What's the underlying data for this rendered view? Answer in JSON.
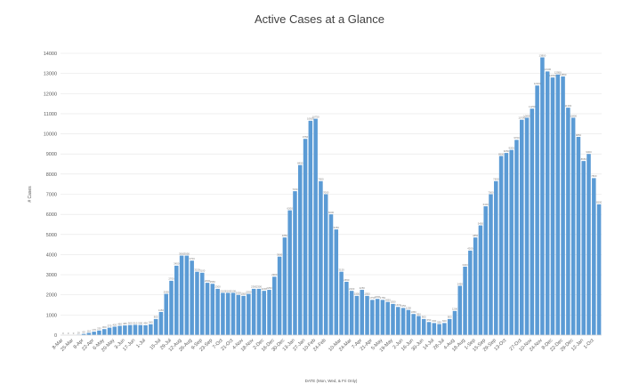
{
  "chart_data": {
    "type": "bar",
    "title": "Active Cases at a Glance",
    "xlabel": "DATE (Mon, Wed, & Fri Only)",
    "ylabel": "# Cases",
    "ylim": [
      0,
      14000
    ],
    "yticks": [
      0,
      1000,
      2000,
      3000,
      4000,
      5000,
      6000,
      7000,
      8000,
      9000,
      10000,
      11000,
      12000,
      13000,
      14000
    ],
    "grid": true,
    "bar_color": "#5b9bd5",
    "tick_labels": [
      "8-Mar",
      "25-Mar",
      "8-Apr",
      "22-Apr",
      "6-May",
      "20-May",
      "3-Jun",
      "17-Jun",
      "1-Jul",
      "15-Jul",
      "29-Jul",
      "12-Aug",
      "26-Aug",
      "9-Sep",
      "23-Sep",
      "7-Oct",
      "21-Oct",
      "4-Nov",
      "18-Nov",
      "2-Dec",
      "16-Dec",
      "30-Dec",
      "13-Jan",
      "27-Jan",
      "10-Feb",
      "24-Feb",
      "10-Mar",
      "24-Mar",
      "7-Apr",
      "21-Apr",
      "5-May",
      "19-May",
      "2-Jun",
      "16-Jun",
      "30-Jun",
      "14-Jul",
      "28-Jul",
      "4-Aug",
      "18-Aug",
      "1-Sep",
      "15-Sep",
      "29-Sep",
      "13-Oct",
      "27-Oct",
      "10-Nov",
      "24-Nov",
      "8-Dec",
      "22-Dec",
      "29-Dec",
      "12-Jan",
      "1-Oct"
    ],
    "values": [
      0,
      0,
      0,
      20,
      60,
      110,
      170,
      230,
      300,
      370,
      420,
      460,
      480,
      500,
      510,
      500,
      490,
      540,
      800,
      1150,
      2050,
      2700,
      3450,
      3950,
      3950,
      3700,
      3150,
      3100,
      2600,
      2550,
      2300,
      2100,
      2100,
      2100,
      2000,
      1950,
      2050,
      2300,
      2300,
      2200,
      2250,
      2900,
      3900,
      4850,
      6200,
      7150,
      8450,
      9750,
      10650,
      10750,
      7650,
      7000,
      6000,
      5250,
      3150,
      2650,
      2200,
      1950,
      2250,
      1950,
      1750,
      1800,
      1750,
      1650,
      1550,
      1400,
      1350,
      1250,
      1050,
      950,
      800,
      650,
      600,
      550,
      600,
      800,
      1200,
      2450,
      3400,
      4200,
      4850,
      5450,
      6400,
      7000,
      7650,
      8900,
      9050,
      9200,
      9700,
      10700,
      10800,
      11250,
      12400,
      13800,
      13100,
      12800,
      12950,
      12850,
      11300,
      10800,
      9850,
      8650,
      9000,
      7800,
      6500
    ]
  }
}
